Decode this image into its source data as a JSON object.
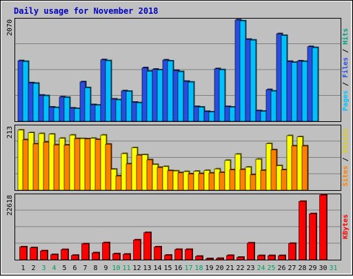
{
  "chart_data": {
    "type": "bar",
    "title": "Daily usage for November 2018",
    "categories": [
      "1",
      "2",
      "3",
      "4",
      "5",
      "6",
      "7",
      "8",
      "9",
      "10",
      "11",
      "12",
      "13",
      "14",
      "15",
      "16",
      "17",
      "18",
      "19",
      "20",
      "21",
      "22",
      "23",
      "24",
      "25",
      "26",
      "27",
      "28",
      "29",
      "30",
      "31"
    ],
    "weekend_days": [
      "3",
      "4",
      "10",
      "11",
      "17",
      "18",
      "24",
      "25",
      "31"
    ],
    "panels": [
      {
        "name": "top",
        "ymax_label": "2070",
        "ymax": 2070,
        "series": [
          {
            "name": "Pages",
            "color": "#2a4de0",
            "values": [
              1245,
              790,
              535,
              290,
              500,
              270,
              810,
              340,
              1265,
              455,
              625,
              390,
              1100,
              1070,
              1260,
              1045,
              820,
              300,
              200,
              1080,
              300,
              2085,
              1685,
              215,
              650,
              1800,
              1230,
              1240,
              1535,
              null,
              null
            ]
          },
          {
            "name": "Files",
            "color": "#00c0ff",
            "values": [
              1230,
              780,
              525,
              280,
              490,
              260,
              690,
              330,
              1245,
              440,
              615,
              380,
              1030,
              1055,
              1240,
              1020,
              805,
              290,
              190,
              1060,
              290,
              2065,
              1670,
              205,
              620,
              1765,
              1210,
              1230,
              1515,
              null,
              null
            ]
          },
          {
            "name": "Hits",
            "color": "#00c090",
            "values": []
          }
        ]
      },
      {
        "name": "middle",
        "ymax_label": "213",
        "ymax": 213,
        "series": [
          {
            "name": "Visits",
            "color": "#ffff00",
            "values": [
              204,
              195,
              192,
              190,
              176,
              187,
              175,
              176,
              187,
              71,
              124,
              144,
              120,
              87,
              80,
              65,
              63,
              64,
              67,
              72,
              101,
              122,
              78,
              105,
              158,
              83,
              185,
              181,
              null,
              null,
              null
            ]
          },
          {
            "name": "Sites",
            "color": "#ff8000",
            "values": [
              171,
              157,
              163,
              154,
              153,
              175,
              174,
              172,
              156,
              48,
              89,
              119,
              103,
              77,
              66,
              59,
              55,
              56,
              58,
              60,
              69,
              70,
              52,
              67,
              137,
              69,
              150,
              150,
              null,
              null,
              null
            ]
          }
        ]
      },
      {
        "name": "bottom",
        "ymax_label": "22618",
        "ymax": 22618,
        "series": [
          {
            "name": "KBytes",
            "color": "#ff0000",
            "values": [
              4550,
              4250,
              3150,
              1800,
              3600,
              1550,
              5650,
              2450,
              6050,
              2100,
              1950,
              7050,
              9650,
              4550,
              1600,
              3650,
              3650,
              1200,
              350,
              450,
              1500,
              850,
              5950,
              1450,
              1450,
              1450,
              5800,
              20800,
              16400,
              23250,
              null
            ]
          }
        ]
      }
    ],
    "axis_labels_right": [
      {
        "parts": [
          {
            "text": "Pages",
            "color": "#00c0ff"
          },
          {
            "text": " / ",
            "color": "#000000"
          },
          {
            "text": "Files",
            "color": "#2a4de0"
          },
          {
            "text": " / ",
            "color": "#000000"
          },
          {
            "text": "Hits",
            "color": "#00a080"
          }
        ]
      },
      {
        "parts": [
          {
            "text": "Sites",
            "color": "#ff8000"
          },
          {
            "text": " / ",
            "color": "#000000"
          },
          {
            "text": "Visits",
            "color": "#e0d000"
          }
        ]
      },
      {
        "parts": [
          {
            "text": "KBytes",
            "color": "#ff0000"
          }
        ]
      }
    ],
    "colors": {
      "background": "#c0c0c0",
      "plot_background": "#c0c0c0",
      "gridline": "#808080",
      "title": "#0000c0",
      "weekday_label": "#000000",
      "weekend_label": "#00a060"
    }
  }
}
